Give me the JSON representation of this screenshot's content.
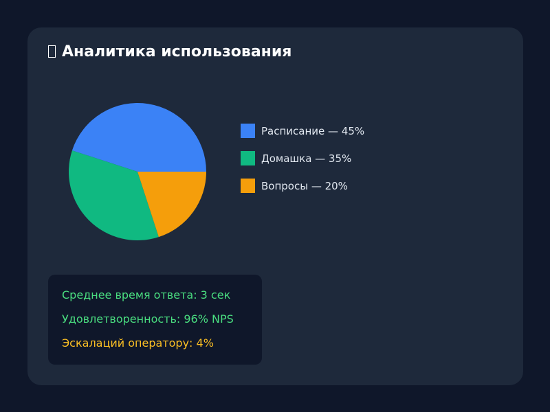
{
  "title": "Аналитика использования",
  "title_icon": "chart-icon",
  "chart_data": {
    "type": "pie",
    "categories": [
      "Расписание",
      "Домашка",
      "Вопросы"
    ],
    "values": [
      45,
      35,
      20
    ],
    "legend_labels": [
      "Расписание — 45%",
      "Домашка — 35%",
      "Вопросы — 20%"
    ],
    "colors": [
      "#3b82f6",
      "#10b981",
      "#f59e0b"
    ],
    "legend_position": "right"
  },
  "stats": [
    {
      "text": "Среднее время ответа: 3 сек",
      "color": "#4ade80"
    },
    {
      "text": "Удовлетворенность: 96% NPS",
      "color": "#4ade80"
    },
    {
      "text": "Эскалаций оператору: 4%",
      "color": "#fbbf24"
    }
  ]
}
